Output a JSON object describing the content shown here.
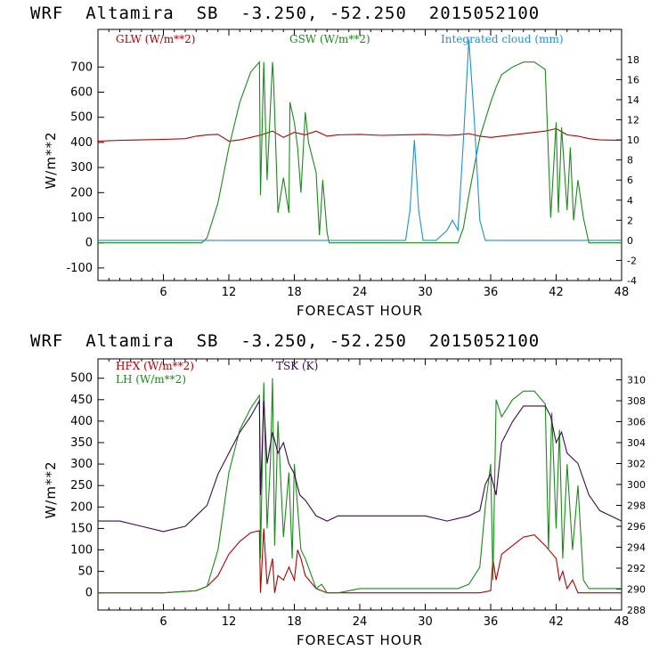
{
  "panels": [
    {
      "title": "WRF  Altamira  SB  -3.250, -52.250  2015052100",
      "xlabel": "FORECAST HOUR",
      "ylabel": "W/m**2",
      "legend": [
        {
          "label": "GLW (W/m**2)",
          "color": "#b00000"
        },
        {
          "label": "GSW (W/m**2)",
          "color": "#1a8a1a"
        },
        {
          "label": "Integrated cloud (mm)",
          "color": "#1f8fd6"
        }
      ],
      "xticks": [
        "6",
        "12",
        "18",
        "24",
        "30",
        "36",
        "42",
        "48"
      ],
      "yticks": [
        "-100",
        "0",
        "100",
        "200",
        "300",
        "400",
        "500",
        "600",
        "700"
      ],
      "y2ticks": [
        "-4",
        "-2",
        "0",
        "2",
        "4",
        "6",
        "8",
        "10",
        "12",
        "14",
        "16",
        "18"
      ]
    },
    {
      "title": "WRF  Altamira  SB  -3.250, -52.250  2015052100",
      "xlabel": "FORECAST HOUR",
      "ylabel": "W/m**2",
      "legend": [
        {
          "label": "HFX (W/m**2)",
          "color": "#b00000"
        },
        {
          "label": "LH  (W/m**2)",
          "color": "#1a8a1a"
        },
        {
          "label": "TSK (K)",
          "color": "#3a0a4a"
        }
      ],
      "xticks": [
        "6",
        "12",
        "18",
        "24",
        "30",
        "36",
        "42",
        "48"
      ],
      "yticks": [
        "0",
        "50",
        "100",
        "150",
        "200",
        "250",
        "300",
        "350",
        "400",
        "450",
        "500"
      ],
      "y2ticks": [
        "288",
        "290",
        "292",
        "294",
        "296",
        "298",
        "300",
        "302",
        "304",
        "306",
        "308",
        "310"
      ]
    }
  ],
  "chart_data": [
    {
      "type": "line",
      "title": "WRF  Altamira  SB  -3.250, -52.250  2015052100",
      "xlabel": "FORECAST HOUR",
      "ylabel": "W/m**2",
      "xlim": [
        0,
        48
      ],
      "ylim": [
        -150,
        850
      ],
      "y2lim": [
        -4,
        21
      ],
      "series": [
        {
          "name": "GLW (W/m**2)",
          "axis": "left",
          "color": "#b00000",
          "x": [
            0,
            2,
            4,
            6,
            8,
            9,
            10,
            11,
            12,
            13,
            14,
            15,
            16,
            17,
            18,
            19,
            20,
            21,
            22,
            24,
            26,
            28,
            30,
            32,
            33,
            34,
            35,
            36,
            38,
            40,
            41,
            42,
            43,
            44,
            45,
            46,
            48
          ],
          "y": [
            405,
            408,
            410,
            412,
            415,
            425,
            430,
            432,
            405,
            410,
            420,
            430,
            445,
            420,
            440,
            430,
            445,
            425,
            430,
            432,
            428,
            430,
            432,
            428,
            430,
            435,
            425,
            420,
            430,
            440,
            445,
            455,
            430,
            425,
            415,
            410,
            408
          ]
        },
        {
          "name": "GSW (W/m**2)",
          "axis": "left",
          "color": "#1a8a1a",
          "x": [
            0,
            9.5,
            10,
            11,
            12,
            13,
            14,
            14.8,
            14.9,
            15.2,
            15.5,
            16,
            16.1,
            16.5,
            17,
            17.5,
            17.6,
            18,
            18.3,
            18.6,
            19,
            19.3,
            20,
            20.3,
            20.6,
            21,
            21.2,
            33,
            33.5,
            34,
            35,
            36,
            36.5,
            37,
            38,
            39,
            40,
            41,
            41.5,
            42,
            42.2,
            42.5,
            43,
            43.3,
            43.6,
            44,
            44.5,
            45,
            48
          ],
          "y": [
            0,
            0,
            20,
            160,
            380,
            560,
            680,
            720,
            190,
            720,
            250,
            720,
            650,
            120,
            260,
            120,
            560,
            480,
            380,
            200,
            520,
            400,
            280,
            30,
            250,
            40,
            0,
            0,
            60,
            190,
            420,
            560,
            620,
            670,
            700,
            720,
            720,
            690,
            100,
            480,
            120,
            460,
            130,
            380,
            90,
            250,
            100,
            0,
            0
          ]
        },
        {
          "name": "Integrated cloud (mm)",
          "axis": "right",
          "color": "#1f8fd6",
          "x": [
            0,
            28.2,
            28.6,
            29,
            29.4,
            29.8,
            31,
            32,
            32.5,
            33,
            33.5,
            34,
            34.5,
            35,
            35.5,
            48
          ],
          "y": [
            0,
            0,
            3,
            10,
            3,
            0,
            0,
            1,
            2,
            1,
            10,
            20,
            12,
            2,
            0,
            0
          ]
        }
      ]
    },
    {
      "type": "line",
      "title": "WRF  Altamira  SB  -3.250, -52.250  2015052100",
      "xlabel": "FORECAST HOUR",
      "ylabel": "W/m**2",
      "xlim": [
        0,
        48
      ],
      "ylim": [
        -40,
        545
      ],
      "y2lim": [
        288,
        312
      ],
      "series": [
        {
          "name": "HFX (W/m**2)",
          "axis": "left",
          "color": "#b00000",
          "x": [
            0,
            6,
            9,
            10,
            11,
            12,
            13,
            14,
            14.8,
            14.9,
            15.2,
            15.5,
            16,
            16.2,
            16.5,
            17,
            17.5,
            18,
            18.3,
            18.6,
            19,
            20,
            21,
            22,
            30,
            33,
            35,
            36,
            36.2,
            36.5,
            37,
            38,
            39,
            40,
            41,
            42,
            42.3,
            42.6,
            43,
            43.5,
            44,
            45,
            48
          ],
          "y": [
            0,
            0,
            5,
            15,
            40,
            90,
            120,
            140,
            145,
            0,
            150,
            20,
            80,
            0,
            40,
            30,
            60,
            30,
            100,
            80,
            40,
            10,
            0,
            0,
            0,
            0,
            0,
            5,
            80,
            30,
            90,
            110,
            130,
            135,
            110,
            80,
            30,
            50,
            10,
            30,
            0,
            0,
            0
          ]
        },
        {
          "name": "LH  (W/m**2)",
          "axis": "left",
          "color": "#1a8a1a",
          "x": [
            0,
            6,
            9,
            10,
            11,
            12,
            13,
            14,
            14.8,
            14.9,
            15.2,
            15.5,
            15.8,
            16,
            16.2,
            16.5,
            17,
            17.5,
            17.8,
            18,
            18.3,
            18.6,
            19,
            20,
            20.5,
            21,
            22,
            24,
            30,
            33,
            34,
            35,
            35.5,
            36,
            36.2,
            36.5,
            37,
            38,
            39,
            40,
            41,
            41.3,
            41.6,
            42,
            42.3,
            42.6,
            43,
            43.5,
            44,
            44.5,
            45,
            48
          ],
          "y": [
            0,
            0,
            5,
            15,
            100,
            280,
            380,
            430,
            460,
            80,
            490,
            150,
            300,
            500,
            110,
            400,
            130,
            280,
            80,
            300,
            200,
            100,
            80,
            10,
            20,
            0,
            0,
            10,
            10,
            10,
            20,
            60,
            200,
            300,
            30,
            450,
            410,
            450,
            470,
            470,
            440,
            100,
            420,
            150,
            380,
            80,
            300,
            100,
            250,
            30,
            10,
            10
          ]
        },
        {
          "name": "TSK (K)",
          "axis": "right",
          "color": "#3a0a4a",
          "x": [
            0,
            2,
            4,
            6,
            8,
            9,
            10,
            11,
            12,
            13,
            14,
            14.8,
            14.9,
            15.2,
            15.5,
            16,
            16.5,
            17,
            17.5,
            18,
            18.5,
            19,
            20,
            21,
            22,
            24,
            26,
            28,
            30,
            32,
            34,
            35,
            35.5,
            36,
            36.5,
            37,
            38,
            39,
            40,
            41,
            41.5,
            42,
            42.5,
            43,
            44,
            45,
            46,
            47,
            48
          ],
          "y": [
            296.5,
            296.5,
            296,
            295.5,
            296,
            297,
            298,
            301,
            303,
            305,
            306.5,
            308,
            299,
            308,
            302,
            305,
            303,
            304,
            302,
            301,
            299,
            298.5,
            297,
            296.5,
            297,
            297,
            297,
            297,
            297,
            296.5,
            297,
            297.5,
            300,
            301,
            299,
            304,
            306,
            307.5,
            307.5,
            307.5,
            306.5,
            304,
            305,
            303,
            302,
            299,
            297.5,
            297,
            296.5
          ]
        }
      ]
    }
  ]
}
